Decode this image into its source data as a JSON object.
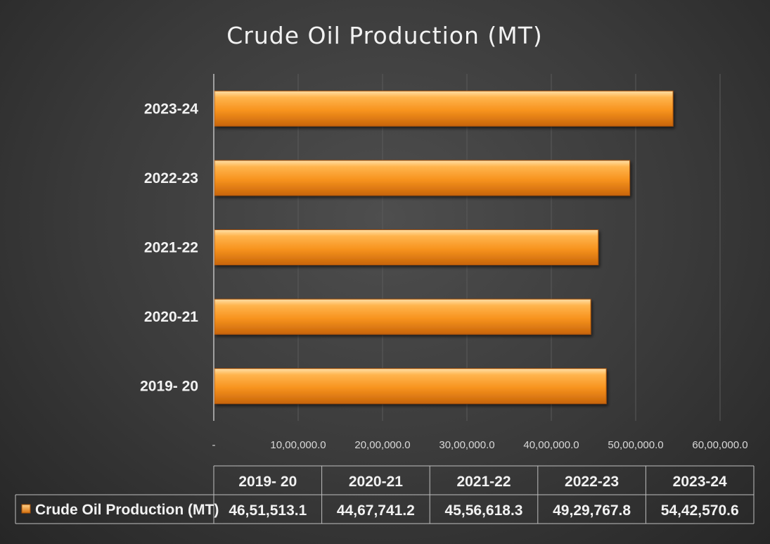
{
  "chart_data": {
    "type": "bar",
    "orientation": "horizontal",
    "title": "Crude Oil Production (MT)",
    "categories": [
      "2019- 20",
      "2020-21",
      "2021-22",
      "2022-23",
      "2023-24"
    ],
    "series": [
      {
        "name": "Crude Oil Production (MT)",
        "values": [
          4651513.1,
          4467741.2,
          4556618.3,
          4929767.8,
          5442570.6
        ],
        "value_labels": [
          "46,51,513.1",
          "44,67,741.2",
          "45,56,618.3",
          "49,29,767.8",
          "54,42,570.6"
        ],
        "color": "#f28c28"
      }
    ],
    "xlim": [
      0,
      6000000
    ],
    "x_ticks": [
      0,
      1000000,
      2000000,
      3000000,
      4000000,
      5000000,
      6000000
    ],
    "x_tick_labels": [
      "-",
      "10,00,000.0",
      "20,00,000.0",
      "30,00,000.0",
      "40,00,000.0",
      "50,00,000.0",
      "60,00,000.0"
    ],
    "grid": "vertical",
    "data_table": true,
    "legend": "in data table"
  },
  "colors": {
    "bar_light": "#ffd28a",
    "bar_mid": "#f7931e",
    "bar_dark": "#c8650a",
    "text": "#f2f2f2"
  }
}
